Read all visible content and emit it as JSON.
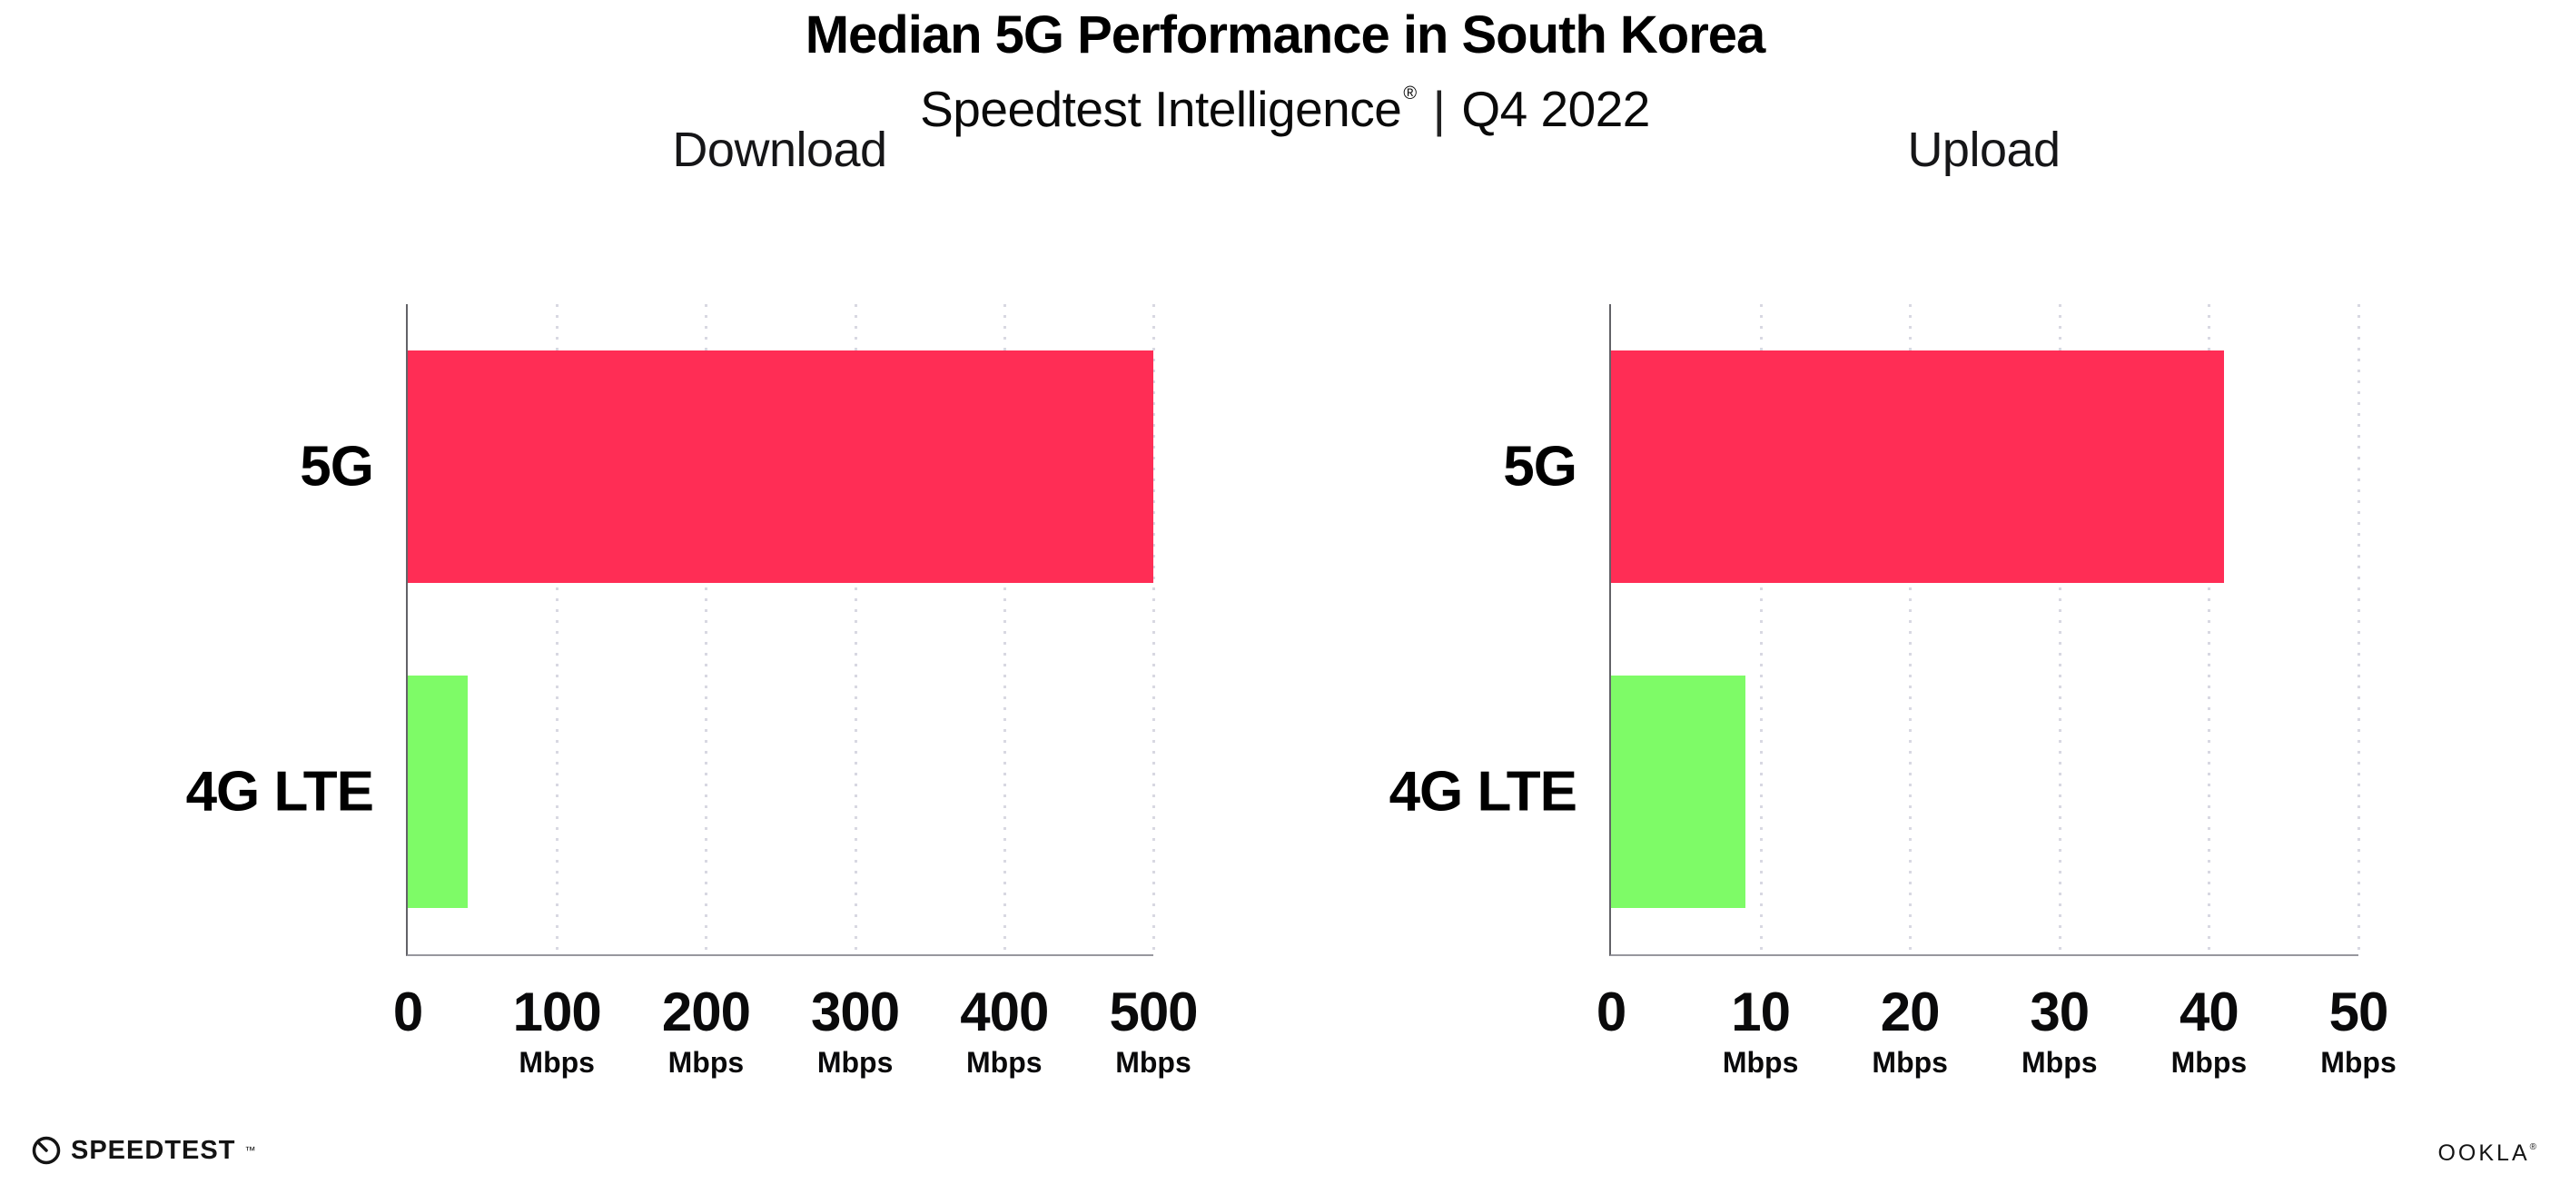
{
  "header": {
    "title": "Median 5G Performance in South Korea",
    "subtitle_product": "Speedtest Intelligence",
    "subtitle_reg_mark": "®",
    "subtitle_divider": "|",
    "subtitle_period": "Q4 2022"
  },
  "footer": {
    "speedtest_wordmark": "SPEEDTEST",
    "speedtest_tm": "™",
    "ookla_wordmark": "OOKLA",
    "ookla_reg": "®"
  },
  "colors": {
    "bar_5g": "#FF2D55",
    "bar_4g_lte": "#7EFB67",
    "y_axis": "#626267",
    "x_axis": "#97979e",
    "gridline": "#d8d8e2",
    "text": "#0a0a0b"
  },
  "chart_data": [
    {
      "type": "bar",
      "orientation": "horizontal",
      "title": "Download",
      "categories": [
        "5G",
        "4G LTE"
      ],
      "values": [
        500,
        40
      ],
      "unit": "Mbps",
      "xlabel": "",
      "ylabel": "",
      "xlim": [
        0,
        500
      ],
      "xticks": [
        0,
        100,
        200,
        300,
        400,
        500
      ],
      "bar_colors": [
        "#FF2D55",
        "#7EFB67"
      ],
      "grid": "dotted vertical gridlines at each tick",
      "legend": "none"
    },
    {
      "type": "bar",
      "orientation": "horizontal",
      "title": "Upload",
      "categories": [
        "5G",
        "4G LTE"
      ],
      "values": [
        41,
        9
      ],
      "unit": "Mbps",
      "xlabel": "",
      "ylabel": "",
      "xlim": [
        0,
        50
      ],
      "xticks": [
        0,
        10,
        20,
        30,
        40,
        50
      ],
      "bar_colors": [
        "#FF2D55",
        "#7EFB67"
      ],
      "grid": "dotted vertical gridlines at each tick",
      "legend": "none"
    }
  ]
}
